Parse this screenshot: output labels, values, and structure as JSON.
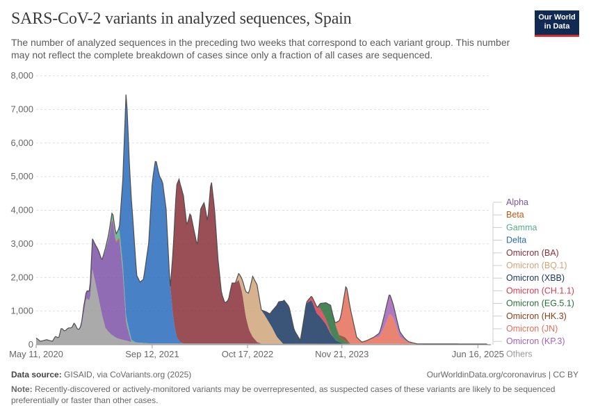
{
  "header": {
    "title": "SARS-CoV-2 variants in analyzed sequences, Spain",
    "subtitle": "The number of analyzed sequences in the preceding two weeks that correspond to each variant group. This number may not reflect the complete breakdown of cases since only a fraction of all cases are sequenced.",
    "logo_line1": "Our World",
    "logo_line2": "in Data"
  },
  "footer": {
    "source_label": "Data source:",
    "source_text": "GISAID, via CoVariants.org (2025)",
    "url": "OurWorldinData.org/coronavirus | CC BY",
    "note_label": "Note:",
    "note_text": "Recently-discovered or actively-monitored variants may be overrepresented, as suspected cases of these variants are likely to be sequenced preferentially or faster than other cases."
  },
  "chart_data": {
    "type": "area",
    "stacked": true,
    "ylim": [
      0,
      8000
    ],
    "y_ticks": [
      0,
      1000,
      2000,
      3000,
      4000,
      5000,
      6000,
      7000,
      8000
    ],
    "y_tick_labels": [
      "0",
      "1,000",
      "2,000",
      "3,000",
      "4,000",
      "5,000",
      "6,000",
      "7,000",
      "8,000"
    ],
    "x_ticks": [
      {
        "t": 0,
        "label": "May 11, 2020"
      },
      {
        "t": 1.34,
        "label": "Sep 12, 2021"
      },
      {
        "t": 2.44,
        "label": "Oct 17, 2022"
      },
      {
        "t": 3.53,
        "label": "Nov 21, 2023"
      },
      {
        "t": 5.1,
        "label": "Jun 16, 2025"
      }
    ],
    "x_unit_note": "t = years since May 11, 2020",
    "grid": true,
    "legend_position": "right",
    "series": [
      {
        "name": "Others",
        "color": "#9b9b9b",
        "t": [
          0,
          0.05,
          0.12,
          0.19,
          0.22,
          0.26,
          0.29,
          0.33,
          0.37,
          0.41,
          0.44,
          0.48,
          0.52,
          0.56,
          0.58,
          0.62,
          0.65,
          0.7,
          0.76,
          0.8,
          0.83,
          0.87,
          0.93,
          0.96,
          1.0,
          1.1,
          1.3,
          5.2
        ],
        "v": [
          200,
          100,
          150,
          100,
          250,
          200,
          500,
          400,
          500,
          500,
          650,
          450,
          500,
          1100,
          1400,
          1300,
          2250,
          1650,
          900,
          500,
          400,
          300,
          200,
          170,
          150,
          80,
          40,
          20
        ]
      },
      {
        "name": "Alpha",
        "color": "#7b52a6",
        "t": [
          0.5,
          0.55,
          0.58,
          0.62,
          0.65,
          0.68,
          0.72,
          0.76,
          0.8,
          0.84,
          0.88,
          0.92,
          0.96,
          1.0,
          1.04,
          1.1
        ],
        "v": [
          0,
          200,
          200,
          300,
          900,
          1100,
          1400,
          1600,
          2300,
          2800,
          3500,
          2800,
          3000,
          2000,
          500,
          0
        ]
      },
      {
        "name": "Beta",
        "color": "#c05917",
        "t": [
          0.8,
          0.9,
          1.0,
          1.1
        ],
        "v": [
          0,
          40,
          50,
          0
        ]
      },
      {
        "name": "Gamma",
        "color": "#58ac8c",
        "t": [
          0.75,
          0.85,
          0.95,
          1.05,
          1.15
        ],
        "v": [
          0,
          150,
          250,
          150,
          0
        ]
      },
      {
        "name": "Delta",
        "color": "#286bbb",
        "t": [
          0.96,
          1.0,
          1.04,
          1.08,
          1.12,
          1.16,
          1.2,
          1.24,
          1.3,
          1.34,
          1.38,
          1.42,
          1.46,
          1.5,
          1.54,
          1.58,
          1.62,
          1.66,
          1.7
        ],
        "v": [
          0,
          2500,
          6800,
          4800,
          3500,
          2000,
          1800,
          1900,
          3000,
          4800,
          5500,
          5000,
          4800,
          4000,
          2000,
          800,
          200,
          50,
          0
        ]
      },
      {
        "name": "Omicron (BA)",
        "color": "#883039",
        "t": [
          1.55,
          1.62,
          1.65,
          1.7,
          1.74,
          1.78,
          1.82,
          1.86,
          1.9,
          1.94,
          1.98,
          2.02,
          2.06,
          2.1,
          2.14,
          2.18,
          2.22,
          2.26,
          2.3,
          2.34,
          2.38,
          2.42,
          2.46,
          2.5,
          2.55,
          2.6
        ],
        "v": [
          0,
          4500,
          4800,
          4400,
          3500,
          3900,
          3400,
          2900,
          4000,
          4200,
          3600,
          4900,
          4000,
          2500,
          1500,
          1200,
          1300,
          1800,
          1800,
          1900,
          1500,
          800,
          400,
          200,
          50,
          0
        ]
      },
      {
        "name": "Omicron (BQ.1)",
        "color": "#cfa57a",
        "t": [
          2.3,
          2.38,
          2.45,
          2.5,
          2.55,
          2.6,
          2.65,
          2.72,
          2.78,
          2.85
        ],
        "v": [
          0,
          400,
          1000,
          1800,
          1700,
          1000,
          800,
          500,
          200,
          0
        ]
      },
      {
        "name": "Omicron (XBB)",
        "color": "#18375f",
        "t": [
          2.6,
          2.7,
          2.8,
          2.86,
          2.92,
          2.98,
          3.05,
          3.12,
          3.18,
          3.24,
          3.28,
          3.34,
          3.4,
          3.46,
          3.5,
          3.56
        ],
        "v": [
          0,
          300,
          1100,
          1300,
          1100,
          400,
          100,
          1200,
          1300,
          900,
          800,
          600,
          300,
          100,
          50,
          0
        ]
      },
      {
        "name": "Omicron (CH.1.1)",
        "color": "#d73c50",
        "t": [
          3.1,
          3.2,
          3.28,
          3.35,
          3.42
        ],
        "v": [
          0,
          150,
          250,
          150,
          0
        ]
      },
      {
        "name": "Omicron (EG.5.1)",
        "color": "#286f3b",
        "t": [
          3.25,
          3.33,
          3.4,
          3.45,
          3.5,
          3.55,
          3.62
        ],
        "v": [
          0,
          400,
          800,
          500,
          150,
          100,
          0
        ]
      },
      {
        "name": "Omicron (HK.3)",
        "color": "#883e1c",
        "t": [
          3.45,
          3.52,
          3.57,
          3.63
        ],
        "v": [
          0,
          80,
          120,
          0
        ]
      },
      {
        "name": "Omicron (JN)",
        "color": "#e56e5a",
        "t": [
          3.45,
          3.52,
          3.58,
          3.64,
          3.7,
          3.76,
          3.82,
          3.9,
          3.96,
          4.02,
          4.08,
          4.12,
          4.16,
          4.2,
          4.26,
          4.32,
          4.4
        ],
        "v": [
          0,
          600,
          1600,
          900,
          200,
          50,
          100,
          200,
          200,
          500,
          900,
          800,
          500,
          200,
          100,
          50,
          0
        ]
      },
      {
        "name": "Omicron (KP.3)",
        "color": "#a263b8",
        "t": [
          3.9,
          3.98,
          4.04,
          4.08,
          4.12,
          4.18,
          4.24,
          4.3
        ],
        "v": [
          0,
          150,
          450,
          600,
          400,
          200,
          80,
          0
        ]
      }
    ],
    "legend": [
      {
        "label": "Alpha",
        "color": "#7b52a6"
      },
      {
        "label": "Beta",
        "color": "#c05917"
      },
      {
        "label": "Gamma",
        "color": "#58ac8c"
      },
      {
        "label": "Delta",
        "color": "#286bbb"
      },
      {
        "label": "Omicron (BA)",
        "color": "#883039"
      },
      {
        "label": "Omicron (BQ.1)",
        "color": "#cfa57a"
      },
      {
        "label": "Omicron (XBB)",
        "color": "#18375f"
      },
      {
        "label": "Omicron (CH.1.1)",
        "color": "#d73c50"
      },
      {
        "label": "Omicron (EG.5.1)",
        "color": "#286f3b"
      },
      {
        "label": "Omicron (HK.3)",
        "color": "#883e1c"
      },
      {
        "label": "Omicron (JN)",
        "color": "#e56e5a"
      },
      {
        "label": "Omicron (KP.3)",
        "color": "#a263b8"
      },
      {
        "label": "Others",
        "color": "#9b9b9b"
      }
    ]
  }
}
